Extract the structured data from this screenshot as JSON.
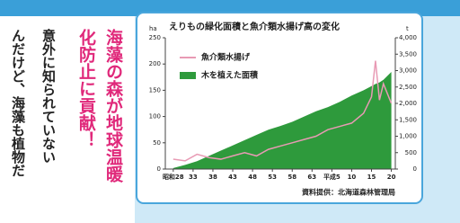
{
  "article": {
    "headline": [
      "海藻の森が地球温暖",
      "化防止に貢献！"
    ],
    "body": [
      "意外に知られていない",
      "んだけど、海藻も植物だ"
    ]
  },
  "chart_data": {
    "type": "combo",
    "title": "えりもの緑化面積と魚介類水揚げ高の変化",
    "y_label": "ha",
    "y2_label": "t",
    "source": "資料提供：北海道森林管理局",
    "x": [
      1953,
      1956,
      1959,
      1962,
      1965,
      1968,
      1971,
      1974,
      1977,
      1980,
      1983,
      1986,
      1989,
      1992,
      1995,
      1998,
      2001,
      2003,
      2004,
      2005,
      2006,
      2008
    ],
    "xlim": [
      1951,
      2009
    ],
    "xticks": [
      {
        "value": 1953,
        "label": "昭和28"
      },
      {
        "value": 1958,
        "label": "33"
      },
      {
        "value": 1963,
        "label": "38"
      },
      {
        "value": 1968,
        "label": "43"
      },
      {
        "value": 1973,
        "label": "48"
      },
      {
        "value": 1978,
        "label": "53"
      },
      {
        "value": 1983,
        "label": "58"
      },
      {
        "value": 1988,
        "label": "63"
      },
      {
        "value": 1993,
        "label": "平成5"
      },
      {
        "value": 1998,
        "label": "10"
      },
      {
        "value": 2003,
        "label": "15"
      },
      {
        "value": 2008,
        "label": "20"
      }
    ],
    "ylim": [
      0,
      250
    ],
    "yticks": [
      0,
      50,
      100,
      150,
      200,
      250
    ],
    "y2lim": [
      0,
      4000
    ],
    "y2ticks": [
      0,
      500,
      {
        "value": 1000,
        "label": "1,000"
      },
      {
        "value": 1500,
        "label": "1,500"
      },
      {
        "value": 2000,
        "label": "2,000"
      },
      {
        "value": 2500,
        "label": "2,500"
      },
      {
        "value": 3000,
        "label": "3,000"
      },
      {
        "value": 3500,
        "label": "3,500"
      },
      {
        "value": 4000,
        "label": "4,000"
      }
    ],
    "series": [
      {
        "name": "魚介類水揚げ",
        "color": "#e89ab4",
        "kind": "line",
        "axis": "y2",
        "values": [
          300,
          250,
          450,
          350,
          300,
          400,
          500,
          400,
          600,
          700,
          800,
          900,
          1000,
          1200,
          1300,
          1400,
          1700,
          2200,
          3300,
          2100,
          2600,
          2000
        ]
      },
      {
        "name": "木を植えた面積",
        "color": "#2e9a3c",
        "kind": "area",
        "values": [
          2,
          8,
          15,
          25,
          35,
          45,
          55,
          65,
          75,
          82,
          90,
          100,
          110,
          118,
          128,
          140,
          150,
          158,
          162,
          165,
          170,
          185
        ]
      }
    ]
  }
}
